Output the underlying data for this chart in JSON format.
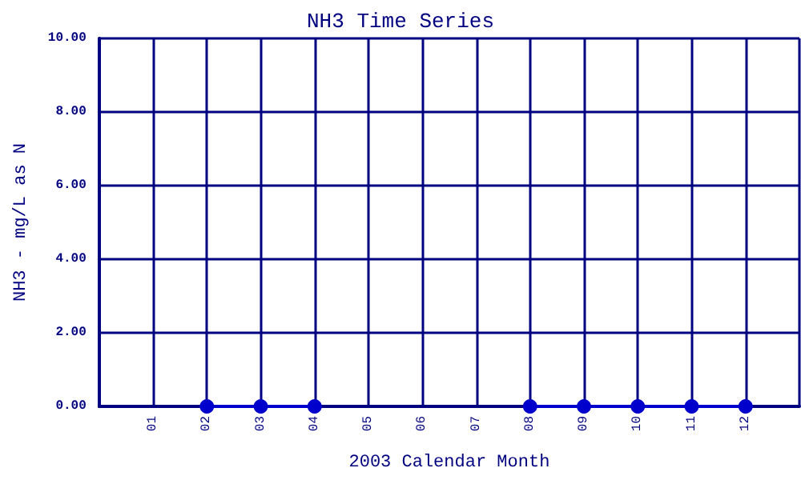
{
  "chart_data": {
    "type": "line",
    "title": "NH3 Time Series",
    "xlabel": "2003 Calendar Month",
    "ylabel": "NH3 - mg/L as N",
    "categories": [
      "01",
      "02",
      "03",
      "04",
      "05",
      "06",
      "07",
      "08",
      "09",
      "10",
      "11",
      "12"
    ],
    "series": [
      {
        "color": "#0000cc",
        "values": [
          null,
          0,
          0,
          0,
          null,
          null,
          null,
          0,
          0,
          0,
          0,
          0
        ]
      }
    ],
    "ylim": [
      0,
      10
    ],
    "yticks": [
      {
        "value": 0,
        "label": "0.00"
      },
      {
        "value": 2,
        "label": "2.00"
      },
      {
        "value": 4,
        "label": "4.00"
      },
      {
        "value": 6,
        "label": "6.00"
      },
      {
        "value": 8,
        "label": "8.00"
      },
      {
        "value": 10,
        "label": "10.00"
      }
    ],
    "grid": true,
    "marker": "circle",
    "line_style": "solid"
  }
}
